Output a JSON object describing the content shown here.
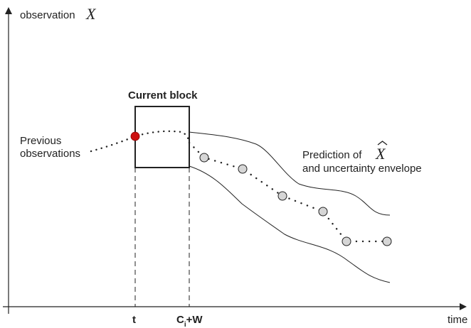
{
  "axes": {
    "y_label": "observation",
    "y_symbol": "X",
    "x_label": "time"
  },
  "block": {
    "title": "Current block"
  },
  "previous": {
    "line1": "Previous",
    "line2": "observations"
  },
  "prediction": {
    "line1_prefix": "Prediction of",
    "line1_symbol": "X",
    "line2": "and uncertainty envelope"
  },
  "ticks": {
    "t": "t",
    "c": "C",
    "c_sub": "i",
    "c_suffix": "+W"
  },
  "colors": {
    "current_point": "#cc1111",
    "predicted_point_fill": "#d6d6d6",
    "line": "#222222"
  },
  "predicted_points_count": 6
}
